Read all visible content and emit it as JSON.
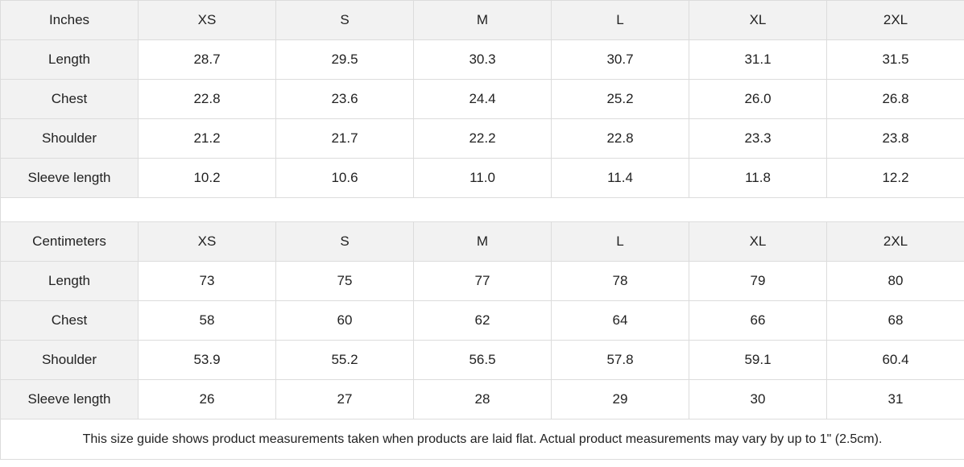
{
  "sizes": [
    "XS",
    "S",
    "M",
    "L",
    "XL",
    "2XL"
  ],
  "tables": [
    {
      "unit": "Inches",
      "rows": [
        {
          "label": "Length",
          "values": [
            "28.7",
            "29.5",
            "30.3",
            "30.7",
            "31.1",
            "31.5"
          ]
        },
        {
          "label": "Chest",
          "values": [
            "22.8",
            "23.6",
            "24.4",
            "25.2",
            "26.0",
            "26.8"
          ]
        },
        {
          "label": "Shoulder",
          "values": [
            "21.2",
            "21.7",
            "22.2",
            "22.8",
            "23.3",
            "23.8"
          ]
        },
        {
          "label": "Sleeve length",
          "values": [
            "10.2",
            "10.6",
            "11.0",
            "11.4",
            "11.8",
            "12.2"
          ]
        }
      ]
    },
    {
      "unit": "Centimeters",
      "rows": [
        {
          "label": "Length",
          "values": [
            "73",
            "75",
            "77",
            "78",
            "79",
            "80"
          ]
        },
        {
          "label": "Chest",
          "values": [
            "58",
            "60",
            "62",
            "64",
            "66",
            "68"
          ]
        },
        {
          "label": "Shoulder",
          "values": [
            "53.9",
            "55.2",
            "56.5",
            "57.8",
            "59.1",
            "60.4"
          ]
        },
        {
          "label": "Sleeve length",
          "values": [
            "26",
            "27",
            "28",
            "29",
            "30",
            "31"
          ]
        }
      ]
    }
  ],
  "footnote": "This size guide shows product measurements taken when products are laid flat.  Actual product measurements may vary by up to 1\" (2.5cm)."
}
